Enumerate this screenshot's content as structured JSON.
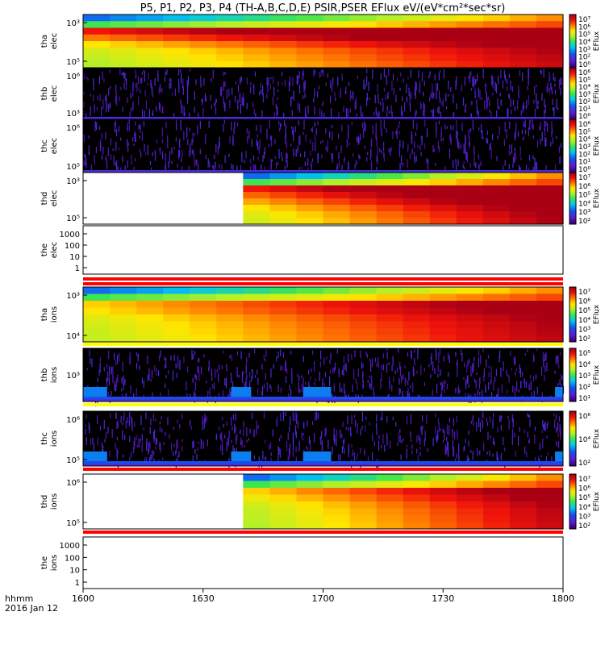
{
  "title": "P5, P1, P2, P3, P4 (TH-A,B,C,D,E) PSIR,PSER EFlux eV/(eV*cm²*sec*sr)",
  "time_axis": {
    "label_top": "hhmm",
    "label_bottom": "2016 Jan 12",
    "ticks": [
      "1600",
      "1630",
      "1700",
      "1730",
      "1800"
    ],
    "range_minutes": [
      0,
      120
    ]
  },
  "chart_data": {
    "type": "heatmap",
    "title": "P5, P1, P2, P3, P4 (TH-A,B,C,D,E) PSIR,PSER EFlux eV/(eV*cm²*sec*sr)",
    "xlabel": "hhmm 2016 Jan 12",
    "panels": [
      {
        "ylabel": [
          "tha",
          "elec"
        ],
        "yticks": [
          "10³",
          "10⁵"
        ],
        "cbar_label": "EFlux",
        "cbar_ticks": [
          "10⁷",
          "10⁶",
          "10⁵",
          "10⁴",
          "10³",
          "10²",
          "10⁰"
        ],
        "pattern": "dense",
        "start_min": 0,
        "levels": [
          0.9,
          0.78,
          0.66,
          0.58,
          0.54,
          0.5
        ]
      },
      {
        "ylabel": [
          "thb",
          "elec"
        ],
        "yticks": [
          "10⁶",
          "10³"
        ],
        "cbar_label": "EFlux",
        "cbar_ticks": [
          "10⁶",
          "10⁵",
          "10⁴",
          "10³",
          "10²",
          "10¹",
          "10⁰"
        ],
        "pattern": "noise"
      },
      {
        "ylabel": [
          "thc",
          "elec"
        ],
        "yticks": [
          "10⁶",
          "10⁵"
        ],
        "cbar_label": "EFlux",
        "cbar_ticks": [
          "10⁶",
          "10⁵",
          "10⁴",
          "10³",
          "10²",
          "10¹",
          "10⁰"
        ],
        "pattern": "noise"
      },
      {
        "ylabel": [
          "thd",
          "elec"
        ],
        "yticks": [
          "10³",
          "10⁵"
        ],
        "cbar_label": "EFlux",
        "cbar_ticks": [
          "10⁷",
          "10⁶",
          "10⁵",
          "10⁴",
          "10³",
          "10²"
        ],
        "pattern": "dense",
        "start_min": 40,
        "levels": [
          0.9,
          0.8,
          0.72,
          0.64,
          0.58,
          0.54
        ]
      },
      {
        "ylabel": [
          "the",
          "elec"
        ],
        "yticks": [
          "1000",
          "100",
          "10",
          "1"
        ],
        "pattern": "empty"
      },
      {
        "ylabel": [
          "tha",
          "ions"
        ],
        "yticks": [
          "10³",
          "10⁴"
        ],
        "cbar_label": "EFlux",
        "cbar_ticks": [
          "10⁷",
          "10⁶",
          "10⁵",
          "10⁴",
          "10³",
          "10²"
        ],
        "pattern": "dense",
        "start_min": 0,
        "levels": [
          0.72,
          0.68,
          0.62,
          0.58,
          0.55,
          0.52
        ]
      },
      {
        "ylabel": [
          "thb",
          "ions"
        ],
        "yticks": [
          "10³"
        ],
        "cbar_label": "EFlux",
        "cbar_ticks": [
          "10⁵",
          "10⁴",
          "10³",
          "10²",
          "10¹"
        ],
        "pattern": "noise_ions"
      },
      {
        "ylabel": [
          "thc",
          "ions"
        ],
        "yticks": [
          "10⁶",
          "10⁵"
        ],
        "cbar_label": "EFlux",
        "cbar_ticks": [
          "10⁶",
          "10⁴",
          "10²"
        ],
        "pattern": "noise_ions"
      },
      {
        "ylabel": [
          "thd",
          "ions"
        ],
        "yticks": [
          "10⁶",
          "10⁵"
        ],
        "cbar_label": "EFlux",
        "cbar_ticks": [
          "10⁷",
          "10⁶",
          "10⁵",
          "10⁴",
          "10³",
          "10²"
        ],
        "pattern": "dense",
        "start_min": 40,
        "levels": [
          0.72,
          0.66,
          0.6,
          0.56,
          0.53,
          0.5
        ]
      },
      {
        "ylabel": [
          "the",
          "ions"
        ],
        "yticks": [
          "1000",
          "100",
          "10",
          "1"
        ],
        "pattern": "empty"
      }
    ]
  }
}
